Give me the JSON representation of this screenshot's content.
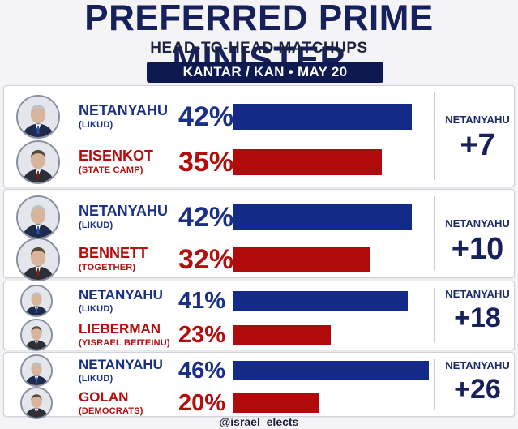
{
  "header": {
    "title": "PREFERRED PRIME MINISTER",
    "subtitle": "HEAD-TO-HEAD MATCHUPS",
    "source": "KANTAR / KAN • MAY 20"
  },
  "footer": {
    "handle": "@israel_elects"
  },
  "colors": {
    "blue": "#142a88",
    "red": "#b10a0a",
    "navy": "#0e1a4f"
  },
  "chart_data": {
    "type": "bar",
    "title": "PREFERRED PRIME MINISTER",
    "subtitle": "HEAD-TO-HEAD MATCHUPS",
    "unit": "%",
    "matchups": [
      {
        "leader": {
          "name": "NETANYAHU",
          "party": "(LIKUD)",
          "value": 42,
          "pct_label": "42%"
        },
        "challenger": {
          "name": "EISENKOT",
          "party": "(STATE CAMP)",
          "value": 35,
          "pct_label": "35%"
        },
        "margin_name": "NETANYAHU",
        "margin_label": "+7"
      },
      {
        "leader": {
          "name": "NETANYAHU",
          "party": "(LIKUD)",
          "value": 42,
          "pct_label": "42%"
        },
        "challenger": {
          "name": "BENNETT",
          "party": "(TOGETHER)",
          "value": 32,
          "pct_label": "32%"
        },
        "margin_name": "NETANYAHU",
        "margin_label": "+10"
      },
      {
        "leader": {
          "name": "NETANYAHU",
          "party": "(LIKUD)",
          "value": 41,
          "pct_label": "41%"
        },
        "challenger": {
          "name": "LIEBERMAN",
          "party": "(YISRAEL BEITEINU)",
          "value": 23,
          "pct_label": "23%"
        },
        "margin_name": "NETANYAHU",
        "margin_label": "+18"
      },
      {
        "leader": {
          "name": "NETANYAHU",
          "party": "(LIKUD)",
          "value": 46,
          "pct_label": "46%"
        },
        "challenger": {
          "name": "GOLAN",
          "party": "(DEMOCRATS)",
          "value": 20,
          "pct_label": "20%"
        },
        "margin_name": "NETANYAHU",
        "margin_label": "+26"
      }
    ]
  }
}
